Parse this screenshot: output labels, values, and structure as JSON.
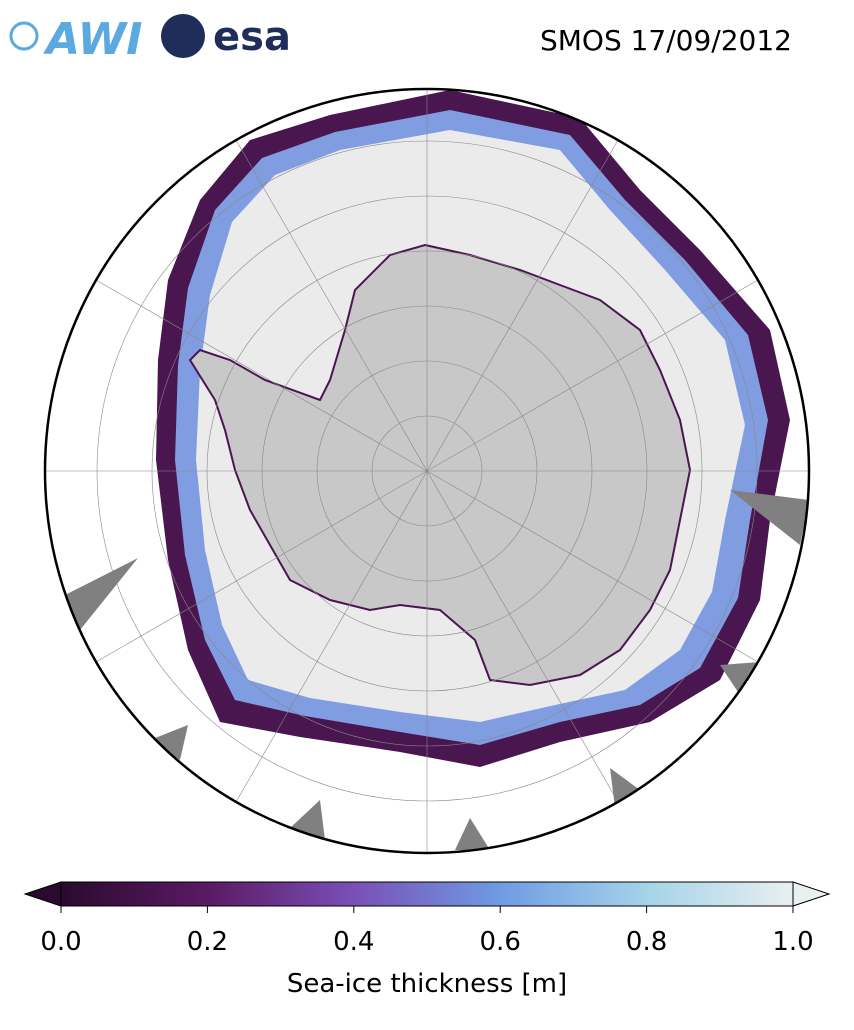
{
  "header": {
    "logos": [
      "AWI",
      "esa"
    ],
    "title": "SMOS 17/09/2012"
  },
  "colorbar": {
    "label": "Sea-ice thickness [m]",
    "lim": [
      0,
      1
    ],
    "ticks": [
      {
        "value": 0,
        "label": "0.0"
      },
      0.2,
      0.4,
      0.6,
      0.8,
      {
        "value": 1,
        "label": "1.0"
      }
    ],
    "colors": [
      "#2a0a2e",
      "#5a1a63",
      "#7a4fb8",
      "#6f9be3",
      "#a5d3e8",
      "#e8f0f0"
    ]
  }
}
